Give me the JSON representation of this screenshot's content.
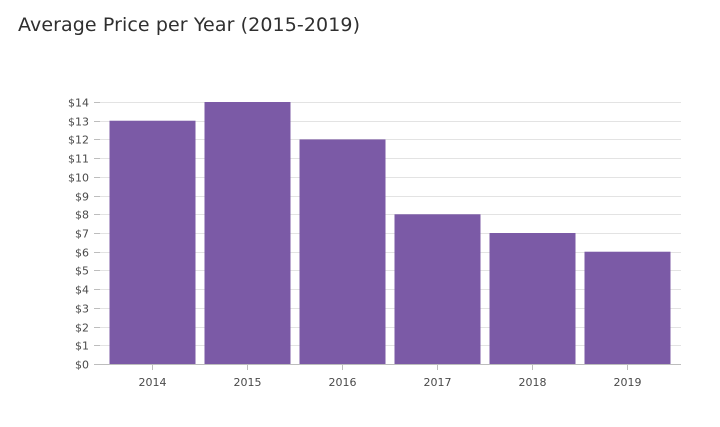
{
  "chart_data": {
    "type": "bar",
    "title": "Average Price per Year (2015-2019)",
    "xlabel": "",
    "ylabel": "",
    "categories": [
      "2014",
      "2015",
      "2016",
      "2017",
      "2018",
      "2019"
    ],
    "values": [
      13,
      14,
      12,
      8,
      7,
      6
    ],
    "ylim": [
      0,
      14
    ],
    "y_ticks": [
      0,
      1,
      2,
      3,
      4,
      5,
      6,
      7,
      8,
      9,
      10,
      11,
      12,
      13,
      14
    ],
    "y_tick_prefix": "$",
    "grid": true,
    "legend": "none",
    "colors": {
      "bar": "#7b5aa6",
      "grid": "#e3e3e3",
      "axis": "#bdbdbd",
      "tick_text": "#4a4a4a",
      "title_text": "#2f2f2f"
    }
  }
}
